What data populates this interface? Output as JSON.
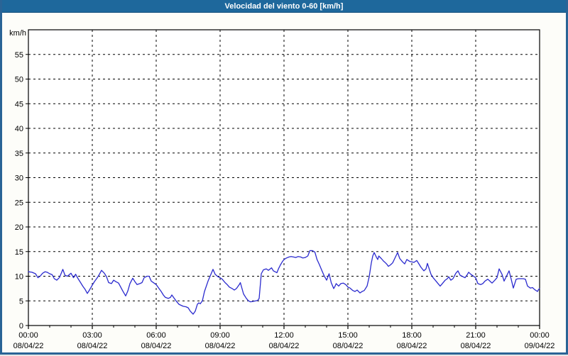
{
  "title_bar": {
    "title": "Velocidad del viento 0-60 [km/h]",
    "bg_color": "#1e689c",
    "text_color": "#ffffff"
  },
  "frame": {
    "border_color": "#2a6496",
    "content_bg": "#fdfdf9",
    "plot_bg": "#ffffff"
  },
  "chart_data": {
    "type": "line",
    "title": "Velocidad del viento 0-60 [km/h]",
    "ylabel": "km/h",
    "xlabel": "",
    "ylim": [
      0,
      60
    ],
    "yticks": [
      0,
      5,
      10,
      15,
      20,
      25,
      30,
      35,
      40,
      45,
      50,
      55
    ],
    "x_hours_total": 24,
    "x_minor_tick_hours": 1,
    "grid": "dashed",
    "legend": "none",
    "line_color": "#2a2ace",
    "axis_color": "#000000",
    "xticks": [
      {
        "hour": 0,
        "time": "00:00",
        "date": "08/04/22"
      },
      {
        "hour": 3,
        "time": "03:00",
        "date": "08/04/22"
      },
      {
        "hour": 6,
        "time": "06:00",
        "date": "08/04/22"
      },
      {
        "hour": 9,
        "time": "09:00",
        "date": "08/04/22"
      },
      {
        "hour": 12,
        "time": "12:00",
        "date": "08/04/22"
      },
      {
        "hour": 15,
        "time": "15:00",
        "date": "08/04/22"
      },
      {
        "hour": 18,
        "time": "18:00",
        "date": "08/04/22"
      },
      {
        "hour": 21,
        "time": "21:00",
        "date": "08/04/22"
      },
      {
        "hour": 24,
        "time": "00:00",
        "date": "09/04/22"
      }
    ],
    "series": [
      {
        "name": "Velocidad del viento",
        "units": "km/h",
        "points_format": "[minutes_from_00:00, km/h]",
        "points": [
          [
            0,
            10.9
          ],
          [
            10,
            10.8
          ],
          [
            20,
            10.5
          ],
          [
            27,
            9.7
          ],
          [
            33,
            10.0
          ],
          [
            40,
            10.6
          ],
          [
            47,
            10.9
          ],
          [
            53,
            10.8
          ],
          [
            60,
            10.5
          ],
          [
            67,
            10.3
          ],
          [
            73,
            9.5
          ],
          [
            80,
            9.2
          ],
          [
            88,
            9.8
          ],
          [
            97,
            11.4
          ],
          [
            103,
            10.2
          ],
          [
            110,
            10.0
          ],
          [
            120,
            10.6
          ],
          [
            127,
            9.7
          ],
          [
            133,
            10.4
          ],
          [
            140,
            9.5
          ],
          [
            147,
            8.7
          ],
          [
            153,
            8.0
          ],
          [
            160,
            7.3
          ],
          [
            166,
            6.5
          ],
          [
            172,
            7.2
          ],
          [
            180,
            8.2
          ],
          [
            186,
            8.9
          ],
          [
            194,
            9.7
          ],
          [
            200,
            10.4
          ],
          [
            206,
            11.2
          ],
          [
            214,
            10.6
          ],
          [
            220,
            9.9
          ],
          [
            226,
            8.7
          ],
          [
            234,
            8.5
          ],
          [
            240,
            9.2
          ],
          [
            246,
            8.9
          ],
          [
            254,
            8.6
          ],
          [
            260,
            7.8
          ],
          [
            266,
            7.0
          ],
          [
            274,
            6.0
          ],
          [
            280,
            7.0
          ],
          [
            286,
            8.5
          ],
          [
            294,
            9.6
          ],
          [
            300,
            8.9
          ],
          [
            306,
            8.3
          ],
          [
            314,
            8.5
          ],
          [
            320,
            8.7
          ],
          [
            326,
            9.7
          ],
          [
            334,
            10.0
          ],
          [
            340,
            10.0
          ],
          [
            346,
            9.0
          ],
          [
            354,
            8.6
          ],
          [
            360,
            8.3
          ],
          [
            366,
            7.7
          ],
          [
            374,
            6.9
          ],
          [
            380,
            6.2
          ],
          [
            386,
            5.7
          ],
          [
            394,
            5.5
          ],
          [
            400,
            5.7
          ],
          [
            404,
            6.2
          ],
          [
            410,
            5.6
          ],
          [
            416,
            5.0
          ],
          [
            424,
            4.3
          ],
          [
            430,
            4.1
          ],
          [
            436,
            3.9
          ],
          [
            444,
            3.8
          ],
          [
            450,
            3.6
          ],
          [
            456,
            2.9
          ],
          [
            464,
            2.3
          ],
          [
            470,
            2.9
          ],
          [
            476,
            4.3
          ],
          [
            480,
            4.6
          ],
          [
            484,
            4.4
          ],
          [
            490,
            5.0
          ],
          [
            496,
            6.9
          ],
          [
            506,
            9.0
          ],
          [
            513,
            10.2
          ],
          [
            520,
            11.4
          ],
          [
            526,
            10.4
          ],
          [
            534,
            9.9
          ],
          [
            540,
            9.7
          ],
          [
            546,
            9.4
          ],
          [
            554,
            8.7
          ],
          [
            560,
            8.3
          ],
          [
            566,
            7.8
          ],
          [
            574,
            7.5
          ],
          [
            580,
            7.2
          ],
          [
            586,
            7.5
          ],
          [
            594,
            8.3
          ],
          [
            597,
            8.7
          ],
          [
            606,
            6.4
          ],
          [
            614,
            5.5
          ],
          [
            620,
            5.0
          ],
          [
            626,
            4.8
          ],
          [
            634,
            4.9
          ],
          [
            640,
            5.0
          ],
          [
            646,
            5.1
          ],
          [
            650,
            5.5
          ],
          [
            653,
            8.0
          ],
          [
            656,
            10.5
          ],
          [
            662,
            11.3
          ],
          [
            670,
            11.5
          ],
          [
            676,
            11.2
          ],
          [
            685,
            11.7
          ],
          [
            690,
            11.1
          ],
          [
            695,
            10.9
          ],
          [
            700,
            10.7
          ],
          [
            705,
            11.6
          ],
          [
            710,
            12.3
          ],
          [
            715,
            12.9
          ],
          [
            720,
            13.4
          ],
          [
            727,
            13.7
          ],
          [
            734,
            13.9
          ],
          [
            740,
            14.0
          ],
          [
            747,
            13.9
          ],
          [
            753,
            13.8
          ],
          [
            760,
            14.0
          ],
          [
            767,
            13.9
          ],
          [
            773,
            13.7
          ],
          [
            780,
            13.8
          ],
          [
            787,
            14.1
          ],
          [
            793,
            15.2
          ],
          [
            800,
            15.2
          ],
          [
            807,
            14.9
          ],
          [
            813,
            13.4
          ],
          [
            820,
            12.3
          ],
          [
            827,
            11.1
          ],
          [
            833,
            10.1
          ],
          [
            840,
            9.2
          ],
          [
            847,
            10.5
          ],
          [
            853,
            8.7
          ],
          [
            860,
            7.5
          ],
          [
            864,
            8.0
          ],
          [
            867,
            8.5
          ],
          [
            874,
            8.0
          ],
          [
            880,
            8.5
          ],
          [
            887,
            8.6
          ],
          [
            894,
            8.3
          ],
          [
            900,
            7.8
          ],
          [
            906,
            7.6
          ],
          [
            914,
            7.1
          ],
          [
            920,
            6.9
          ],
          [
            926,
            7.2
          ],
          [
            934,
            6.6
          ],
          [
            940,
            6.9
          ],
          [
            946,
            7.1
          ],
          [
            954,
            8.0
          ],
          [
            960,
            9.9
          ],
          [
            966,
            12.7
          ],
          [
            970,
            14.1
          ],
          [
            974,
            14.8
          ],
          [
            980,
            13.9
          ],
          [
            984,
            13.4
          ],
          [
            987,
            14.1
          ],
          [
            994,
            13.6
          ],
          [
            1000,
            13.1
          ],
          [
            1006,
            12.7
          ],
          [
            1010,
            12.4
          ],
          [
            1014,
            12.0
          ],
          [
            1020,
            12.3
          ],
          [
            1026,
            12.7
          ],
          [
            1034,
            13.9
          ],
          [
            1040,
            14.8
          ],
          [
            1046,
            13.6
          ],
          [
            1054,
            12.9
          ],
          [
            1060,
            12.5
          ],
          [
            1066,
            13.4
          ],
          [
            1074,
            13.0
          ],
          [
            1080,
            12.9
          ],
          [
            1086,
            12.8
          ],
          [
            1094,
            13.2
          ],
          [
            1100,
            12.5
          ],
          [
            1106,
            11.8
          ],
          [
            1114,
            11.1
          ],
          [
            1120,
            11.5
          ],
          [
            1124,
            12.6
          ],
          [
            1134,
            10.4
          ],
          [
            1140,
            9.7
          ],
          [
            1146,
            9.2
          ],
          [
            1154,
            8.5
          ],
          [
            1160,
            8.0
          ],
          [
            1166,
            8.5
          ],
          [
            1174,
            9.2
          ],
          [
            1180,
            9.5
          ],
          [
            1184,
            9.9
          ],
          [
            1190,
            9.2
          ],
          [
            1196,
            9.5
          ],
          [
            1204,
            10.6
          ],
          [
            1210,
            11.1
          ],
          [
            1216,
            10.2
          ],
          [
            1224,
            9.9
          ],
          [
            1230,
            9.7
          ],
          [
            1236,
            10.3
          ],
          [
            1240,
            10.8
          ],
          [
            1246,
            10.4
          ],
          [
            1254,
            10.0
          ],
          [
            1260,
            9.7
          ],
          [
            1266,
            8.5
          ],
          [
            1274,
            8.3
          ],
          [
            1280,
            8.5
          ],
          [
            1286,
            9.0
          ],
          [
            1294,
            9.4
          ],
          [
            1300,
            9.0
          ],
          [
            1306,
            8.6
          ],
          [
            1314,
            9.2
          ],
          [
            1320,
            9.7
          ],
          [
            1326,
            11.5
          ],
          [
            1334,
            10.4
          ],
          [
            1340,
            9.0
          ],
          [
            1346,
            9.9
          ],
          [
            1354,
            11.1
          ],
          [
            1360,
            9.4
          ],
          [
            1366,
            7.6
          ],
          [
            1374,
            9.4
          ],
          [
            1380,
            9.5
          ],
          [
            1386,
            9.5
          ],
          [
            1394,
            9.5
          ],
          [
            1400,
            9.4
          ],
          [
            1406,
            8.0
          ],
          [
            1414,
            7.6
          ],
          [
            1420,
            7.7
          ],
          [
            1426,
            7.3
          ],
          [
            1434,
            6.9
          ],
          [
            1437,
            7.3
          ],
          [
            1440,
            7.5
          ]
        ]
      }
    ]
  }
}
